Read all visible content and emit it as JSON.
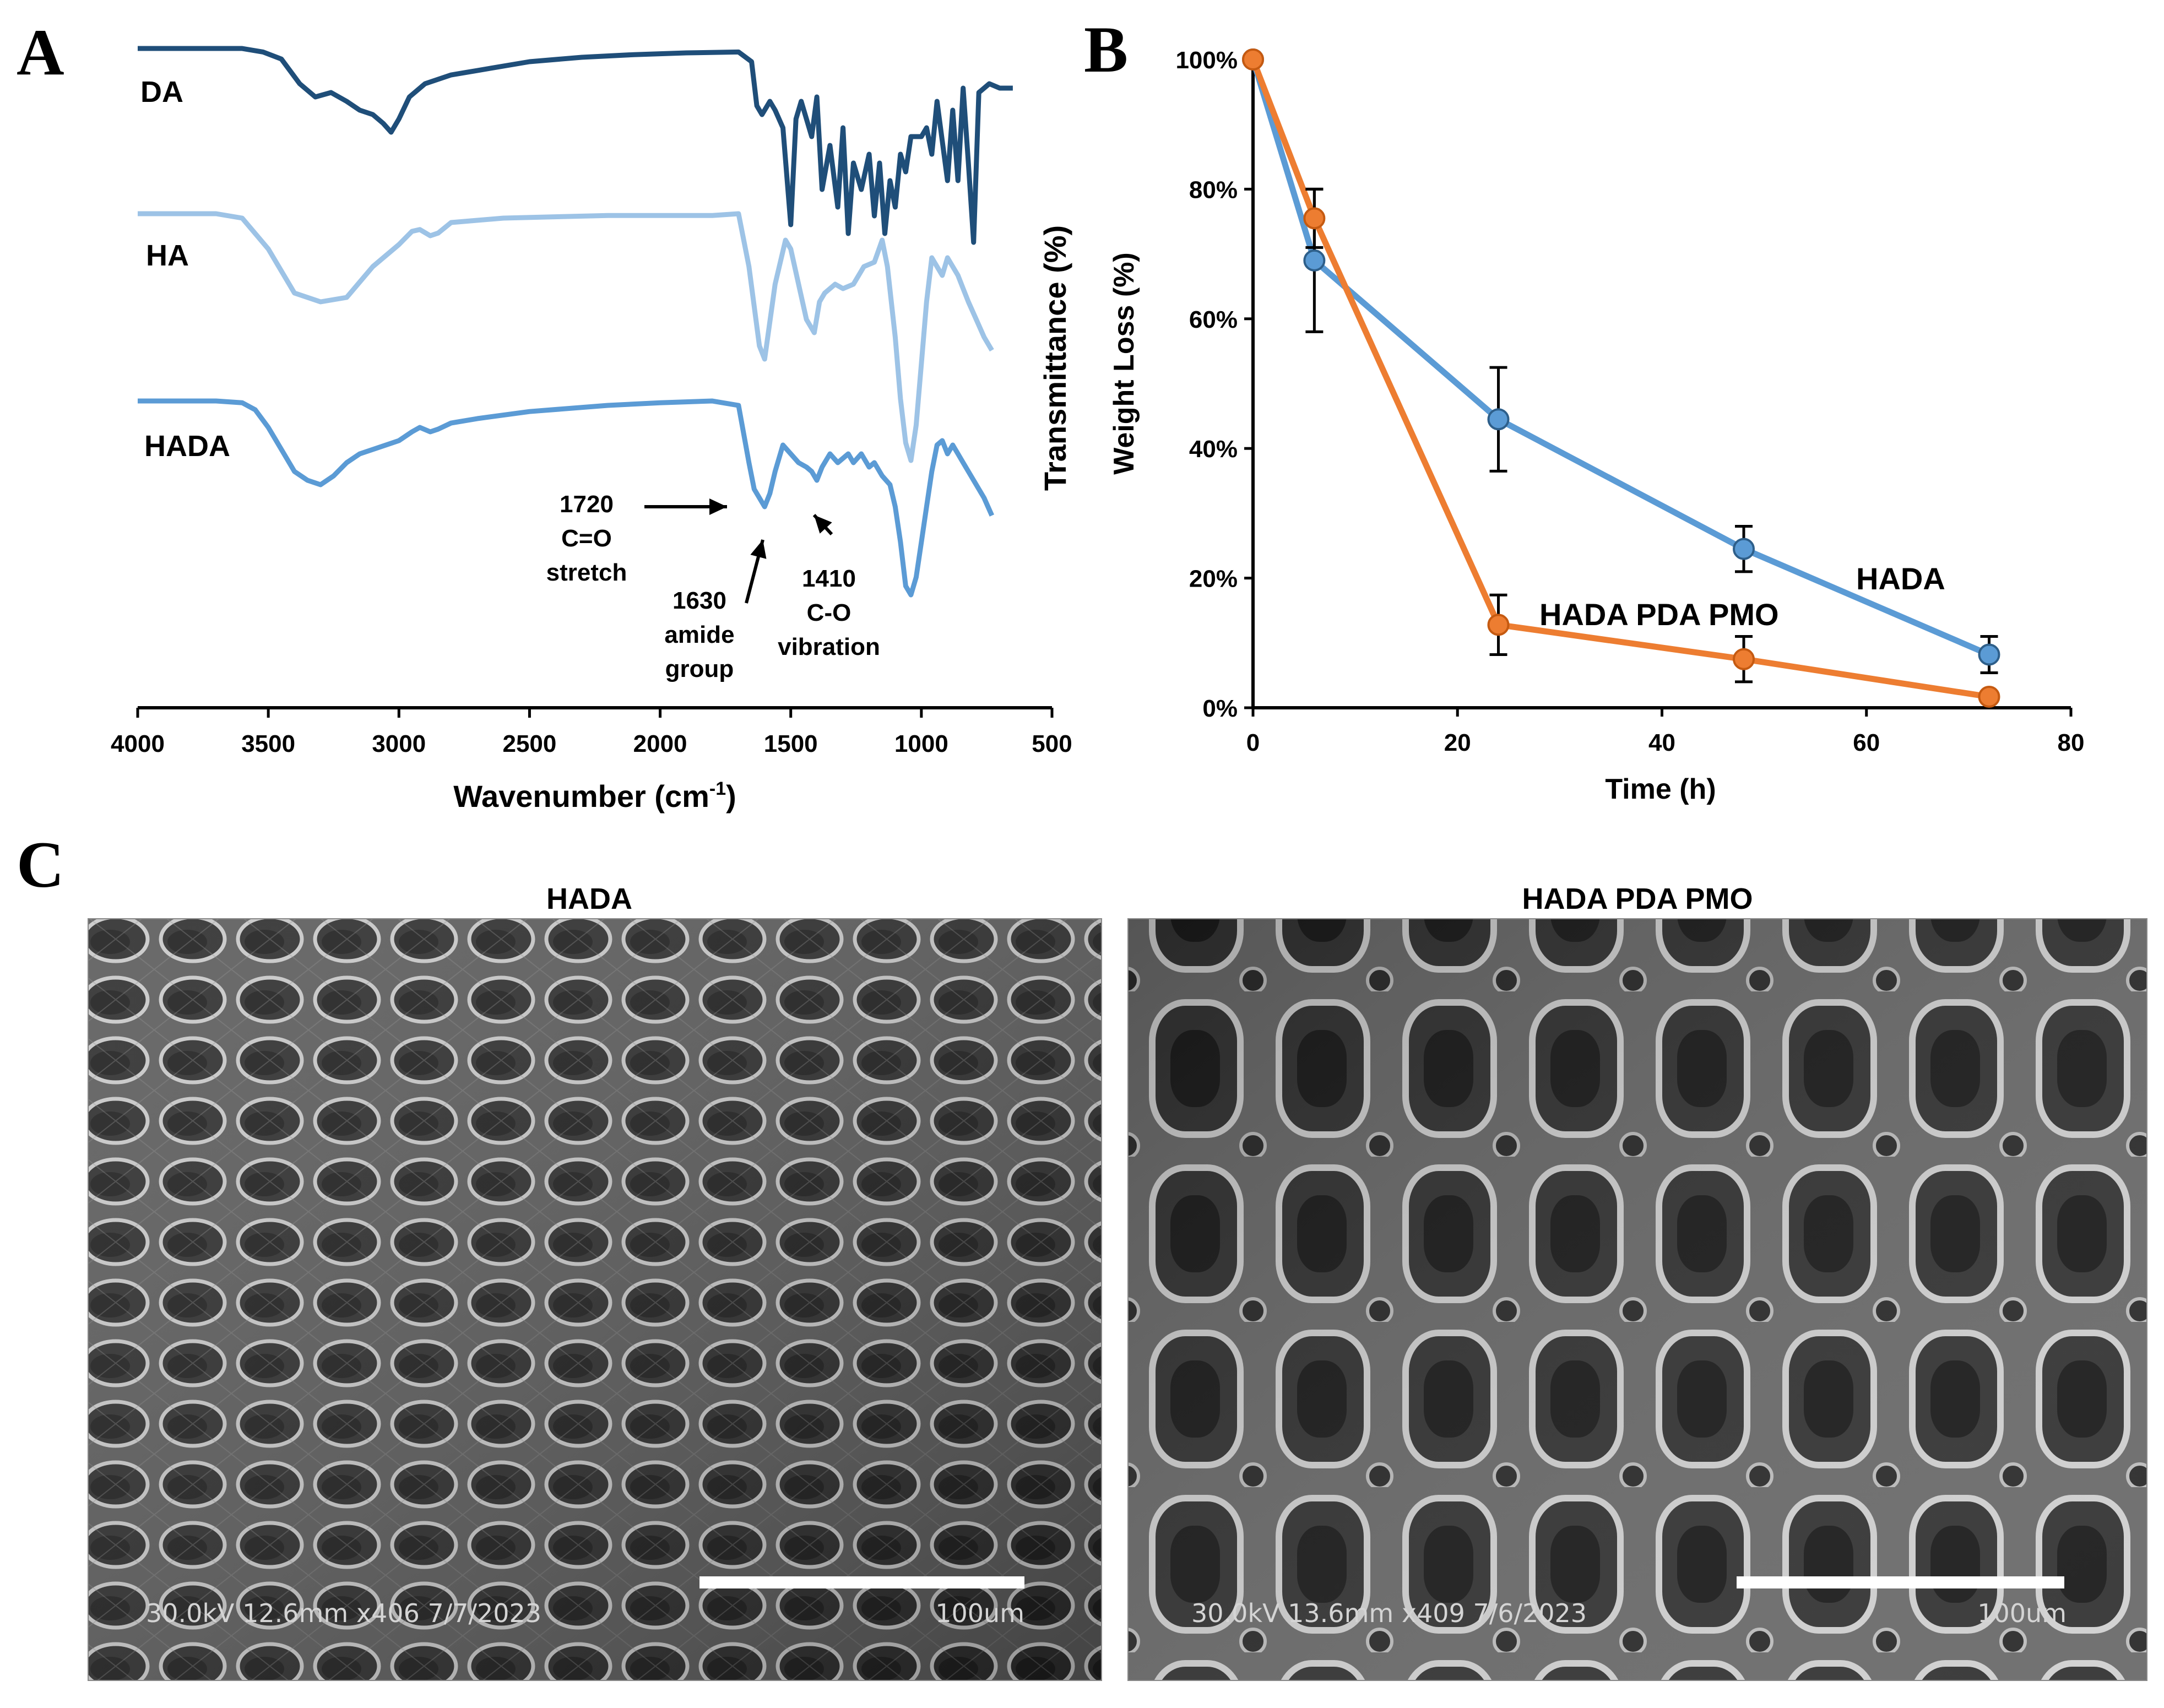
{
  "panels": {
    "a_letter": "A",
    "b_letter": "B",
    "c_letter": "C"
  },
  "chart_data": [
    {
      "panel": "A",
      "type": "line",
      "xlabel": "Wavenumber (cm",
      "xlabel_sup": "-1",
      "xlabel_close": ")",
      "ylabel": "Transmittance (%)",
      "x_reversed": true,
      "xlim": [
        4000,
        500
      ],
      "xticks": [
        4000,
        3500,
        3000,
        2500,
        2000,
        1500,
        1000,
        500
      ],
      "series": [
        {
          "name": "DA",
          "color": "#1f4e79",
          "points": [
            [
              4000,
              0.0
            ],
            [
              3800,
              0.0
            ],
            [
              3600,
              0.0
            ],
            [
              3520,
              0.04
            ],
            [
              3450,
              0.12
            ],
            [
              3380,
              0.4
            ],
            [
              3320,
              0.55
            ],
            [
              3260,
              0.5
            ],
            [
              3200,
              0.6
            ],
            [
              3150,
              0.7
            ],
            [
              3100,
              0.75
            ],
            [
              3060,
              0.85
            ],
            [
              3030,
              0.95
            ],
            [
              3000,
              0.8
            ],
            [
              2960,
              0.55
            ],
            [
              2900,
              0.4
            ],
            [
              2800,
              0.3
            ],
            [
              2700,
              0.25
            ],
            [
              2500,
              0.15
            ],
            [
              2300,
              0.1
            ],
            [
              2100,
              0.07
            ],
            [
              1900,
              0.05
            ],
            [
              1700,
              0.04
            ],
            [
              1650,
              0.15
            ],
            [
              1630,
              0.65
            ],
            [
              1610,
              0.75
            ],
            [
              1580,
              0.6
            ],
            [
              1560,
              0.7
            ],
            [
              1530,
              0.9
            ],
            [
              1500,
              2.0
            ],
            [
              1480,
              0.8
            ],
            [
              1460,
              0.6
            ],
            [
              1420,
              1.0
            ],
            [
              1400,
              0.55
            ],
            [
              1380,
              1.6
            ],
            [
              1350,
              1.1
            ],
            [
              1320,
              1.8
            ],
            [
              1300,
              0.9
            ],
            [
              1280,
              2.1
            ],
            [
              1260,
              1.3
            ],
            [
              1230,
              1.6
            ],
            [
              1200,
              1.2
            ],
            [
              1180,
              1.9
            ],
            [
              1160,
              1.3
            ],
            [
              1140,
              2.1
            ],
            [
              1120,
              1.5
            ],
            [
              1100,
              1.8
            ],
            [
              1080,
              1.2
            ],
            [
              1060,
              1.4
            ],
            [
              1040,
              1.0
            ],
            [
              1000,
              1.0
            ],
            [
              980,
              0.9
            ],
            [
              960,
              1.2
            ],
            [
              940,
              0.6
            ],
            [
              900,
              1.5
            ],
            [
              880,
              0.7
            ],
            [
              860,
              1.5
            ],
            [
              840,
              0.45
            ],
            [
              820,
              1.3
            ],
            [
              800,
              2.2
            ],
            [
              780,
              0.5
            ],
            [
              740,
              0.4
            ],
            [
              700,
              0.45
            ],
            [
              650,
              0.45
            ]
          ]
        },
        {
          "name": "HA",
          "color": "#9dc3e6",
          "points": [
            [
              4000,
              0.0
            ],
            [
              3700,
              0.0
            ],
            [
              3600,
              0.05
            ],
            [
              3500,
              0.4
            ],
            [
              3400,
              0.9
            ],
            [
              3300,
              1.0
            ],
            [
              3200,
              0.95
            ],
            [
              3100,
              0.6
            ],
            [
              3000,
              0.35
            ],
            [
              2950,
              0.2
            ],
            [
              2920,
              0.18
            ],
            [
              2880,
              0.25
            ],
            [
              2850,
              0.22
            ],
            [
              2800,
              0.1
            ],
            [
              2600,
              0.05
            ],
            [
              2200,
              0.02
            ],
            [
              1800,
              0.02
            ],
            [
              1700,
              0.0
            ],
            [
              1660,
              0.6
            ],
            [
              1620,
              1.5
            ],
            [
              1600,
              1.65
            ],
            [
              1560,
              0.8
            ],
            [
              1520,
              0.3
            ],
            [
              1500,
              0.4
            ],
            [
              1470,
              0.8
            ],
            [
              1440,
              1.2
            ],
            [
              1410,
              1.35
            ],
            [
              1390,
              1.0
            ],
            [
              1370,
              0.9
            ],
            [
              1330,
              0.8
            ],
            [
              1300,
              0.85
            ],
            [
              1260,
              0.8
            ],
            [
              1220,
              0.6
            ],
            [
              1180,
              0.55
            ],
            [
              1150,
              0.3
            ],
            [
              1130,
              0.6
            ],
            [
              1100,
              1.4
            ],
            [
              1080,
              2.1
            ],
            [
              1060,
              2.6
            ],
            [
              1040,
              2.8
            ],
            [
              1020,
              2.4
            ],
            [
              1000,
              1.7
            ],
            [
              980,
              1.0
            ],
            [
              960,
              0.5
            ],
            [
              940,
              0.6
            ],
            [
              920,
              0.7
            ],
            [
              900,
              0.5
            ],
            [
              880,
              0.6
            ],
            [
              860,
              0.7
            ],
            [
              840,
              0.85
            ],
            [
              820,
              1.0
            ],
            [
              790,
              1.2
            ],
            [
              760,
              1.4
            ],
            [
              730,
              1.55
            ]
          ]
        },
        {
          "name": "HADA",
          "color": "#5b9bd5",
          "points": [
            [
              4000,
              0.0
            ],
            [
              3700,
              0.0
            ],
            [
              3600,
              0.02
            ],
            [
              3550,
              0.1
            ],
            [
              3500,
              0.3
            ],
            [
              3450,
              0.55
            ],
            [
              3400,
              0.8
            ],
            [
              3350,
              0.9
            ],
            [
              3300,
              0.95
            ],
            [
              3250,
              0.85
            ],
            [
              3200,
              0.7
            ],
            [
              3150,
              0.6
            ],
            [
              3100,
              0.55
            ],
            [
              3050,
              0.5
            ],
            [
              3000,
              0.45
            ],
            [
              2950,
              0.35
            ],
            [
              2920,
              0.3
            ],
            [
              2880,
              0.35
            ],
            [
              2850,
              0.32
            ],
            [
              2800,
              0.25
            ],
            [
              2700,
              0.2
            ],
            [
              2500,
              0.12
            ],
            [
              2200,
              0.05
            ],
            [
              2000,
              0.02
            ],
            [
              1800,
              0.0
            ],
            [
              1700,
              0.05
            ],
            [
              1660,
              0.7
            ],
            [
              1640,
              1.0
            ],
            [
              1620,
              1.1
            ],
            [
              1600,
              1.2
            ],
            [
              1580,
              1.05
            ],
            [
              1560,
              0.8
            ],
            [
              1530,
              0.5
            ],
            [
              1500,
              0.6
            ],
            [
              1470,
              0.7
            ],
            [
              1440,
              0.75
            ],
            [
              1420,
              0.8
            ],
            [
              1400,
              0.9
            ],
            [
              1380,
              0.75
            ],
            [
              1350,
              0.6
            ],
            [
              1320,
              0.7
            ],
            [
              1300,
              0.65
            ],
            [
              1280,
              0.6
            ],
            [
              1260,
              0.7
            ],
            [
              1230,
              0.6
            ],
            [
              1200,
              0.75
            ],
            [
              1180,
              0.7
            ],
            [
              1150,
              0.85
            ],
            [
              1120,
              0.95
            ],
            [
              1100,
              1.2
            ],
            [
              1080,
              1.6
            ],
            [
              1060,
              2.1
            ],
            [
              1040,
              2.2
            ],
            [
              1020,
              2.0
            ],
            [
              1000,
              1.6
            ],
            [
              980,
              1.2
            ],
            [
              960,
              0.8
            ],
            [
              940,
              0.5
            ],
            [
              920,
              0.45
            ],
            [
              900,
              0.6
            ],
            [
              880,
              0.5
            ],
            [
              860,
              0.6
            ],
            [
              840,
              0.7
            ],
            [
              820,
              0.8
            ],
            [
              800,
              0.9
            ],
            [
              780,
              1.0
            ],
            [
              760,
              1.1
            ],
            [
              730,
              1.3
            ]
          ]
        }
      ],
      "annotations": [
        {
          "lines": [
            "1720",
            "C=O",
            "stretch"
          ]
        },
        {
          "lines": [
            "1630",
            "amide",
            "group"
          ]
        },
        {
          "lines": [
            "1410",
            "C-O",
            "vibration"
          ]
        }
      ]
    },
    {
      "panel": "B",
      "type": "line",
      "xlabel": "Time (h)",
      "ylabel": "Weight Loss (%)",
      "xlim": [
        0,
        80
      ],
      "ylim": [
        0,
        100
      ],
      "xticks": [
        0,
        20,
        40,
        60,
        80
      ],
      "yticks": [
        0,
        20,
        40,
        60,
        80,
        100
      ],
      "ytick_labels": [
        "0%",
        "20%",
        "40%",
        "60%",
        "80%",
        "100%"
      ],
      "series": [
        {
          "name": "HADA",
          "color": "#5b9bd5",
          "x": [
            0,
            6,
            24,
            48,
            72
          ],
          "y": [
            100,
            69,
            44.5,
            24.5,
            8.2
          ],
          "err": [
            0,
            11,
            8,
            3.5,
            2.8
          ]
        },
        {
          "name": "HADA PDA PMO",
          "color": "#ed7d31",
          "x": [
            0,
            6,
            24,
            48,
            72
          ],
          "y": [
            100,
            75.5,
            12.8,
            7.5,
            1.7
          ],
          "err": [
            0,
            4.5,
            4.6,
            3.5,
            0
          ]
        }
      ]
    }
  ],
  "sem": {
    "left": {
      "title": "HADA",
      "info": "30.0kV 12.6mm x406 7/7/2023",
      "scale": "100um"
    },
    "right": {
      "title": "HADA PDA PMO",
      "info": "30.0kV 13.6mm x409 7/6/2023",
      "scale": "100um"
    }
  }
}
